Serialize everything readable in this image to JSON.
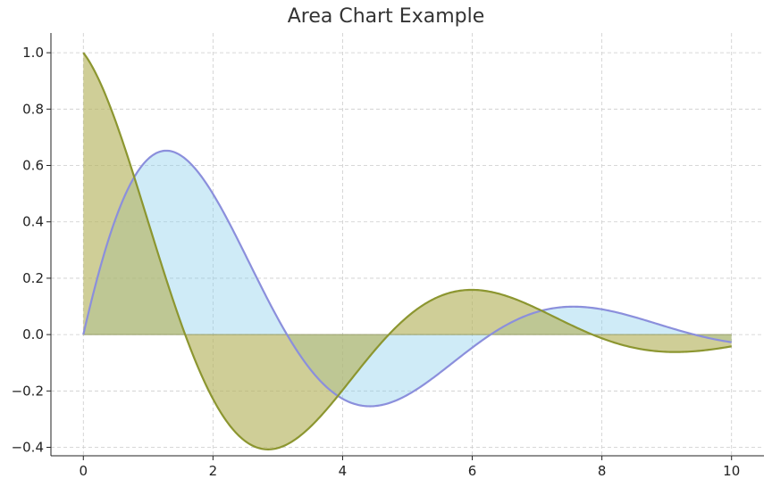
{
  "chart_data": {
    "type": "area",
    "title": "Area Chart Example",
    "xlabel": "",
    "ylabel": "",
    "xlim": [
      -0.5,
      10.5
    ],
    "ylim": [
      -0.43,
      1.07
    ],
    "xticks": [
      0,
      2,
      4,
      6,
      8,
      10
    ],
    "yticks": [
      -0.4,
      -0.2,
      0.0,
      0.2,
      0.4,
      0.6,
      0.8,
      1.0
    ],
    "grid": true,
    "legend": "none",
    "x_range": [
      0,
      10
    ],
    "series": [
      {
        "function": "exp(-0.3*x)*sin(x)",
        "color": "#8b8fdc",
        "fill": "#87ceeb",
        "points": [
          [
            0,
            0.0
          ],
          [
            1.25,
            0.625
          ],
          [
            4.4,
            -0.22
          ],
          [
            6.0,
            -0.04
          ],
          [
            7.6,
            0.076
          ],
          [
            10.0,
            -0.027
          ]
        ]
      },
      {
        "function": "exp(-0.3*x)*cos(x)",
        "color": "#8c9630",
        "fill": "#b5b360",
        "points": [
          [
            0,
            1.0
          ],
          [
            1.57,
            0.0
          ],
          [
            2.8,
            -0.37
          ],
          [
            4.7,
            0.0
          ],
          [
            5.95,
            0.13
          ],
          [
            9.15,
            -0.048
          ],
          [
            10.0,
            -0.04
          ]
        ]
      }
    ]
  },
  "colors": {
    "grid": "#cccccc",
    "axis": "#222222"
  }
}
